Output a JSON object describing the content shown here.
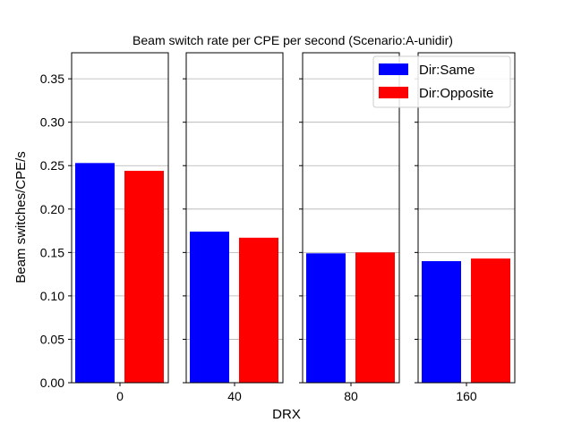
{
  "chart_data": {
    "type": "bar",
    "title": "Beam switch rate per CPE per second (Scenario:A-unidir)",
    "xlabel": "DRX",
    "ylabel": "Beam switches/CPE/s",
    "ylim": [
      0,
      0.38
    ],
    "yticks": [
      "0.00",
      "0.05",
      "0.10",
      "0.15",
      "0.20",
      "0.25",
      "0.30",
      "0.35"
    ],
    "grid": true,
    "legend_position": "top-right",
    "categories": [
      "0",
      "40",
      "80",
      "160"
    ],
    "series": [
      {
        "name": "Dir:Same",
        "color": "#0000ff",
        "values": [
          0.253,
          0.174,
          0.149,
          0.14
        ]
      },
      {
        "name": "Dir:Opposite",
        "color": "#ff0000",
        "values": [
          0.244,
          0.167,
          0.15,
          0.143
        ]
      }
    ]
  }
}
